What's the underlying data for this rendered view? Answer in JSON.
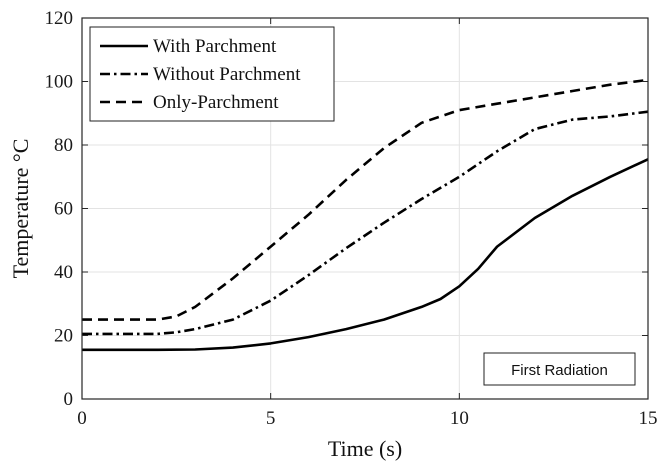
{
  "chart_data": {
    "type": "line",
    "title": "",
    "xlabel": "Time (s)",
    "ylabel": "Temperature °C",
    "xlim": [
      0,
      15
    ],
    "ylim": [
      0,
      120
    ],
    "xticks": [
      0,
      5,
      10,
      15
    ],
    "yticks": [
      0,
      20,
      40,
      60,
      80,
      100,
      120
    ],
    "grid": true,
    "legend_position": "top-left",
    "annotation": "First Radiation",
    "series": [
      {
        "name": "With Parchment",
        "style": "solid",
        "color": "#000000",
        "x": [
          0,
          1,
          2,
          3,
          4,
          5,
          6,
          7,
          8,
          9,
          9.5,
          10,
          10.5,
          11,
          12,
          13,
          14,
          15
        ],
        "y": [
          15.5,
          15.5,
          15.5,
          15.6,
          16.2,
          17.5,
          19.5,
          22,
          25,
          29,
          31.5,
          35.5,
          41,
          48,
          57,
          64,
          70,
          75.5
        ]
      },
      {
        "name": "Without Parchment",
        "style": "dashdot",
        "color": "#000000",
        "x": [
          0,
          1,
          2,
          2.5,
          3,
          4,
          5,
          6,
          7,
          8,
          9,
          10,
          11,
          12,
          13,
          14,
          15
        ],
        "y": [
          20.5,
          20.5,
          20.5,
          21,
          22,
          25,
          31,
          39,
          47.5,
          55.5,
          63,
          70,
          78,
          85,
          88,
          89,
          90.5
        ]
      },
      {
        "name": "Only-Parchment",
        "style": "dashed",
        "color": "#000000",
        "x": [
          0,
          1,
          2,
          2.5,
          3,
          4,
          5,
          6,
          7,
          8,
          9,
          10,
          11,
          12,
          13,
          14,
          15
        ],
        "y": [
          25,
          25,
          25,
          26,
          29,
          38,
          48,
          58,
          69,
          79,
          87,
          91,
          93,
          95,
          97,
          99,
          100.5
        ]
      }
    ]
  }
}
